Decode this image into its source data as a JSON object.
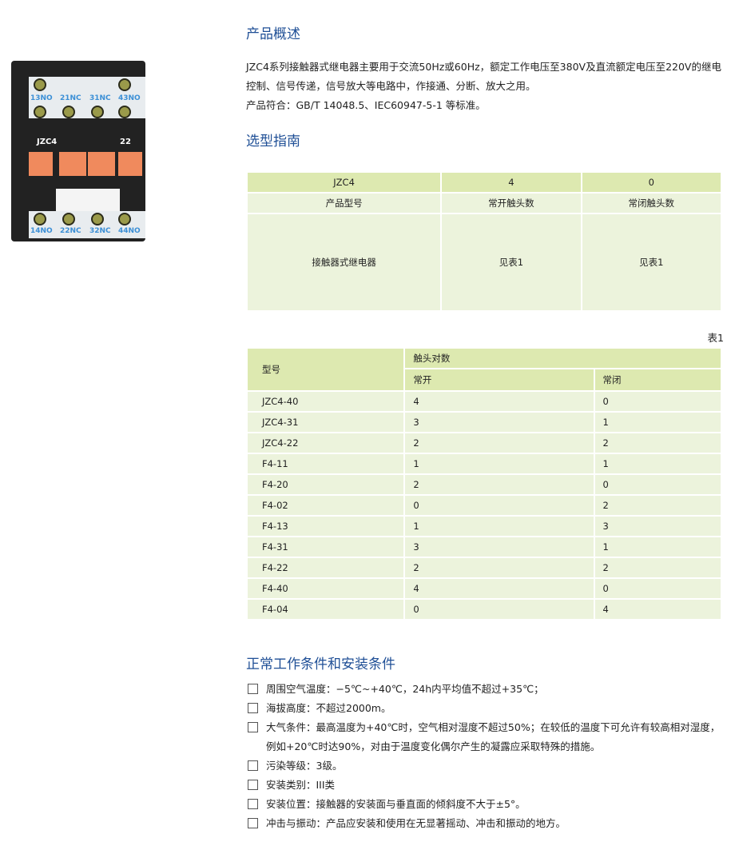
{
  "product_image": {
    "terminals_top": [
      "13NO",
      "21NC",
      "31NC",
      "43NO"
    ],
    "terminals_bottom": [
      "14NO",
      "22NC",
      "32NC",
      "44NO"
    ],
    "model": "JZC4",
    "code": "22"
  },
  "overview": {
    "title": "产品概述",
    "lines": [
      "JZC4系列接触器式继电器主要用于交流50Hz或60Hz，额定工作电压至380V及直流额定电压至220V的继电控制、信号传递，信号放大等电路中，作接通、分断、放大之用。",
      "产品符合：GB/T 14048.5、IEC60947-5-1 等标准。"
    ]
  },
  "selection": {
    "title": "选型指南",
    "rows": [
      [
        "JZC4",
        "4",
        "0"
      ],
      [
        "产品型号",
        "常开触头数",
        "常闭触头数"
      ],
      [
        "接触器式继电器",
        "见表1",
        "见表1"
      ]
    ]
  },
  "table1": {
    "caption": "表1",
    "col_model": "型号",
    "col_group": "触头对数",
    "col_no": "常开",
    "col_nc": "常闭",
    "rows": [
      [
        "JZC4-40",
        "4",
        "0"
      ],
      [
        "JZC4-31",
        "3",
        "1"
      ],
      [
        "JZC4-22",
        "2",
        "2"
      ],
      [
        "F4-11",
        "1",
        "1"
      ],
      [
        "F4-20",
        "2",
        "0"
      ],
      [
        "F4-02",
        "0",
        "2"
      ],
      [
        "F4-13",
        "1",
        "3"
      ],
      [
        "F4-31",
        "3",
        "1"
      ],
      [
        "F4-22",
        "2",
        "2"
      ],
      [
        "F4-40",
        "4",
        "0"
      ],
      [
        "F4-04",
        "0",
        "4"
      ]
    ]
  },
  "conditions": {
    "title": "正常工作条件和安装条件",
    "items": [
      "周围空气温度：−5℃~+40℃，24h内平均值不超过+35℃；",
      "海拔高度：不超过2000m。",
      "大气条件：最高温度为+40℃时，空气相对湿度不超过50%；在较低的温度下可允许有较高相对湿度，例如+20℃时达90%，对由于温度变化偶尔产生的凝露应采取特殊的措施。",
      "污染等级：3级。",
      "安装类别：III类",
      "安装位置：接触器的安装面与垂直面的倾斜度不大于±5°。",
      "冲击与振动：产品应安装和使用在无显著摇动、冲击和振动的地方。"
    ]
  },
  "colors": {
    "heading": "#1f4f96",
    "table_header": "#dde9b0",
    "table_body": "#ecf3dc",
    "button": "#f08a5d"
  }
}
